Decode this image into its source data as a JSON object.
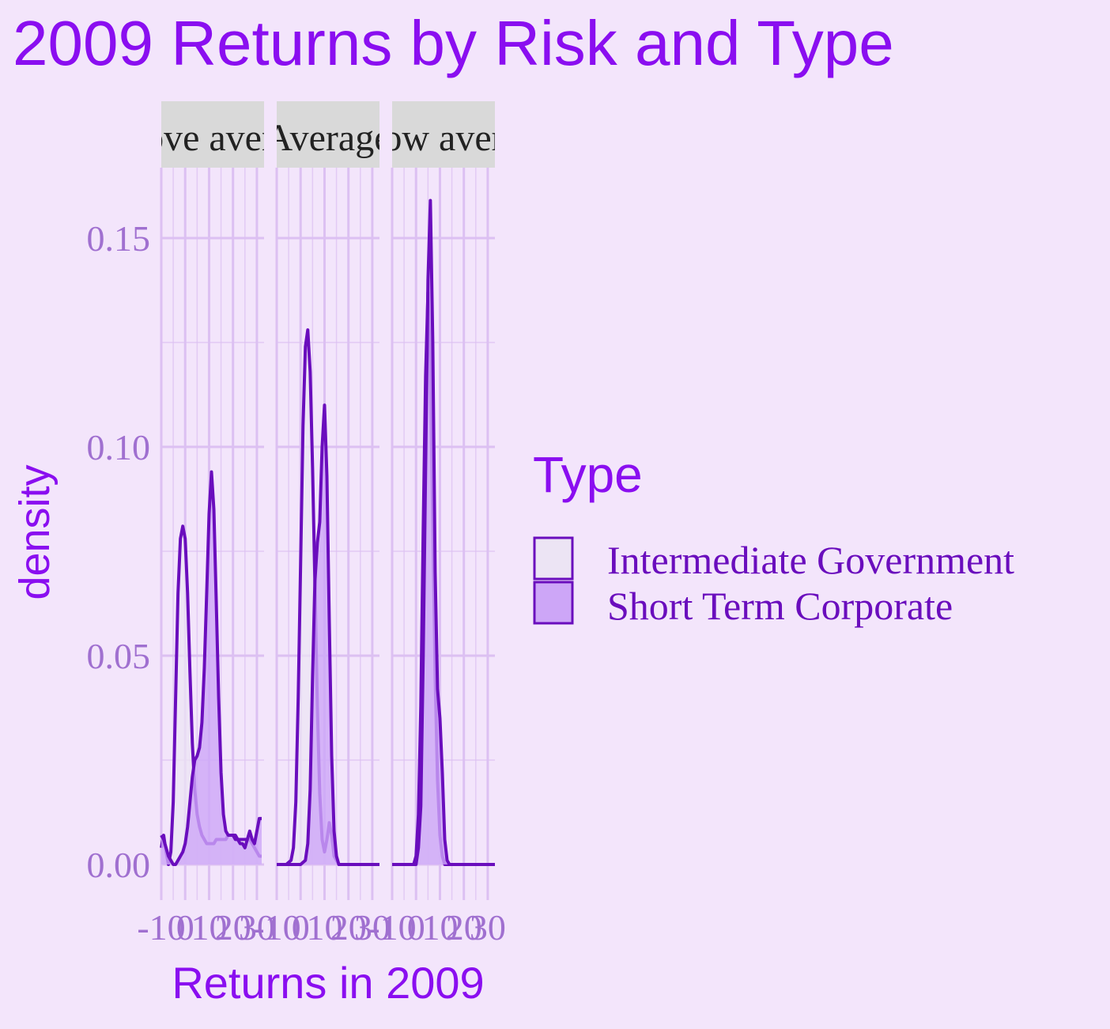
{
  "chart_data": {
    "type": "area",
    "title": "2009 Returns by Risk and Type",
    "xlabel": "Returns in 2009",
    "ylabel": "density",
    "ylim": [
      0,
      0.165
    ],
    "yticks": [
      0.0,
      0.05,
      0.1,
      0.15
    ],
    "ytick_labels": [
      "0.00",
      "0.05",
      "0.10",
      "0.15"
    ],
    "grid": true,
    "legend": {
      "title": "Type",
      "position": "right",
      "entries": [
        "Intermediate Government",
        "Short Term Corporate"
      ]
    },
    "colors": {
      "background": "#f3e5fb",
      "title": "#8a0ef0",
      "line": "#6a0dbd",
      "tick_text": "#a070d0",
      "grid": "#dcc0f2",
      "strip_bg": "#d9d9d9",
      "intermediate_fill": "#ece4f4",
      "short_term_fill": "#cda6f7"
    },
    "panels": [
      {
        "strip": "Above average",
        "strip_visible": "ove ave",
        "xlim": [
          -10,
          33
        ],
        "xticks": [
          -10,
          0,
          10,
          20,
          30
        ],
        "xtick_labels": [
          "-10",
          "0",
          "10",
          "20",
          "30"
        ],
        "series": [
          {
            "name": "Intermediate Government",
            "x": [
              -10,
              -9,
              -8,
              -7,
              -6,
              -5,
              -4,
              -3,
              -2,
              -1,
              0,
              1,
              2,
              3,
              4,
              5,
              6,
              7,
              8,
              9,
              10,
              11,
              12,
              13,
              14,
              15,
              16,
              17,
              18,
              19,
              20,
              21,
              22,
              23,
              24,
              25,
              26,
              27,
              28,
              29,
              30,
              31,
              32
            ],
            "values": [
              0.004,
              0.007,
              0.003,
              0.0,
              0.003,
              0.015,
              0.04,
              0.065,
              0.078,
              0.081,
              0.078,
              0.065,
              0.046,
              0.029,
              0.018,
              0.012,
              0.009,
              0.007,
              0.006,
              0.005,
              0.005,
              0.005,
              0.005,
              0.006,
              0.006,
              0.006,
              0.006,
              0.006,
              0.007,
              0.007,
              0.007,
              0.007,
              0.006,
              0.006,
              0.006,
              0.006,
              0.006,
              0.006,
              0.005,
              0.004,
              0.003,
              0.002,
              0.002
            ]
          },
          {
            "name": "Short Term Corporate",
            "x": [
              -10,
              -9,
              -8,
              -7,
              -6,
              -5,
              -4,
              -3,
              -2,
              -1,
              0,
              1,
              2,
              3,
              4,
              5,
              6,
              7,
              8,
              9,
              10,
              11,
              12,
              13,
              14,
              15,
              16,
              17,
              18,
              19,
              20,
              21,
              22,
              23,
              24,
              25,
              26,
              27,
              28,
              29,
              30,
              31,
              32
            ],
            "values": [
              0.007,
              0.006,
              0.004,
              0.002,
              0.001,
              0.0,
              0.0,
              0.001,
              0.002,
              0.003,
              0.005,
              0.009,
              0.015,
              0.021,
              0.025,
              0.026,
              0.028,
              0.034,
              0.047,
              0.065,
              0.084,
              0.094,
              0.085,
              0.063,
              0.04,
              0.022,
              0.012,
              0.008,
              0.007,
              0.007,
              0.007,
              0.006,
              0.006,
              0.005,
              0.005,
              0.004,
              0.006,
              0.008,
              0.006,
              0.005,
              0.008,
              0.011,
              0.011
            ]
          }
        ]
      },
      {
        "strip": "Average",
        "strip_visible": "Averag",
        "xlim": [
          -10,
          33
        ],
        "xticks": [
          -10,
          0,
          10,
          20,
          30
        ],
        "xtick_labels": [
          "-10",
          "0",
          "10",
          "20",
          "30"
        ],
        "series": [
          {
            "name": "Intermediate Government",
            "x": [
              -10,
              -6,
              -4,
              -3,
              -2,
              -1,
              0,
              1,
              2,
              3,
              4,
              5,
              6,
              7,
              8,
              9,
              10,
              11,
              12,
              13,
              14,
              16,
              20,
              33
            ],
            "values": [
              0.0,
              0.0,
              0.001,
              0.004,
              0.015,
              0.04,
              0.072,
              0.105,
              0.124,
              0.128,
              0.118,
              0.095,
              0.067,
              0.038,
              0.017,
              0.006,
              0.003,
              0.006,
              0.01,
              0.007,
              0.002,
              0.0,
              0.0,
              0.0
            ]
          },
          {
            "name": "Short Term Corporate",
            "x": [
              -10,
              0,
              2,
              3,
              4,
              5,
              6,
              7,
              8,
              9,
              10,
              11,
              12,
              13,
              14,
              15,
              16,
              17,
              33
            ],
            "values": [
              0.0,
              0.0,
              0.001,
              0.005,
              0.018,
              0.045,
              0.068,
              0.077,
              0.082,
              0.1,
              0.11,
              0.093,
              0.058,
              0.026,
              0.008,
              0.002,
              0.0,
              0.0,
              0.0
            ]
          }
        ]
      },
      {
        "strip": "Below average",
        "strip_visible": "ow ave",
        "xlim": [
          -10,
          33
        ],
        "xticks": [
          -10,
          0,
          10,
          20,
          30
        ],
        "xtick_labels": [
          "-10",
          "0",
          "10",
          "20",
          "30"
        ],
        "series": [
          {
            "name": "Intermediate Government",
            "x": [
              -10,
              -1,
              0,
              1,
              2,
              3,
              4,
              5,
              6,
              7,
              8,
              9,
              10,
              11,
              12,
              13,
              33
            ],
            "values": [
              0.0,
              0.0,
              0.002,
              0.012,
              0.038,
              0.08,
              0.117,
              0.137,
              0.12,
              0.082,
              0.045,
              0.02,
              0.007,
              0.002,
              0.0,
              0.0,
              0.0
            ]
          },
          {
            "name": "Short Term Corporate",
            "x": [
              -10,
              0,
              1,
              2,
              3,
              4,
              5,
              6,
              7,
              8,
              9,
              10,
              11,
              12,
              13,
              14,
              33
            ],
            "values": [
              0.0,
              0.0,
              0.004,
              0.014,
              0.05,
              0.095,
              0.14,
              0.159,
              0.125,
              0.07,
              0.042,
              0.035,
              0.022,
              0.006,
              0.001,
              0.0,
              0.0
            ]
          }
        ]
      }
    ]
  }
}
